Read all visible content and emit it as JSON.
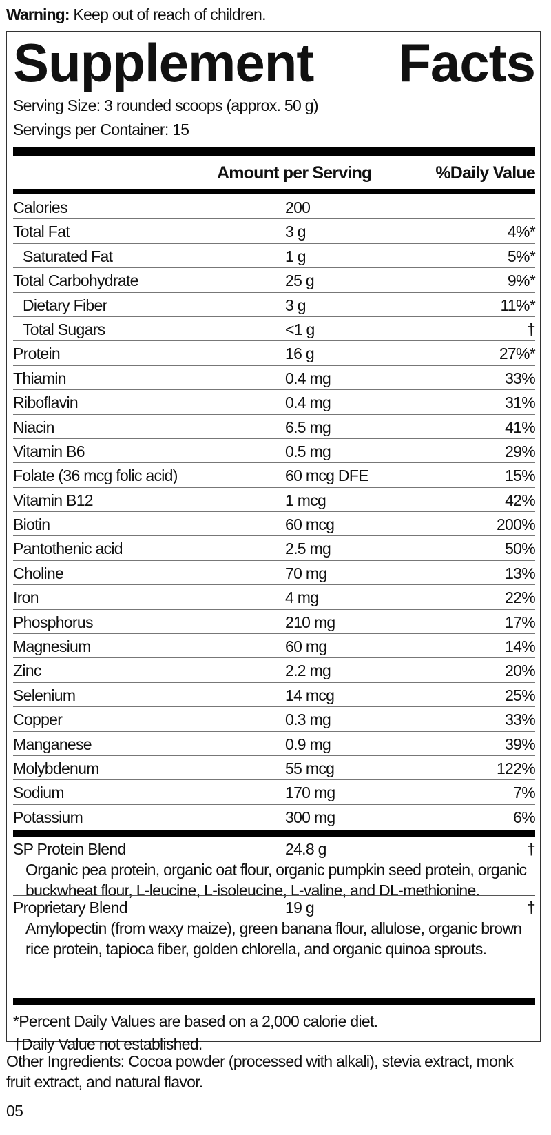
{
  "warning": {
    "label": "Warning:",
    "text": "Keep out of reach of children."
  },
  "title": {
    "word1": "Supplement",
    "word2": "Facts"
  },
  "serving_size": "Serving Size: 3 rounded scoops (approx. 50 g)",
  "servings_per_container": "Servings per Container: 15",
  "header": {
    "amount": "Amount per Serving",
    "dv": "%Daily Value"
  },
  "rows": [
    {
      "name": "Calories",
      "amount": "200",
      "dv": ""
    },
    {
      "name": "Total Fat",
      "amount": "3 g",
      "dv": "4%*"
    },
    {
      "name": "Saturated Fat",
      "amount": "1 g",
      "dv": "5%*"
    },
    {
      "name": "Total Carbohydrate",
      "amount": "25 g",
      "dv": "9%*"
    },
    {
      "name": "Dietary Fiber",
      "amount": "3 g",
      "dv": "11%*"
    },
    {
      "name": "Total Sugars",
      "amount": "<1 g",
      "dv": "†"
    },
    {
      "name": "Protein",
      "amount": "16 g",
      "dv": "27%*"
    },
    {
      "name": "Thiamin",
      "amount": "0.4 mg",
      "dv": "33%"
    },
    {
      "name": "Riboflavin",
      "amount": "0.4 mg",
      "dv": "31%"
    },
    {
      "name": "Niacin",
      "amount": "6.5 mg",
      "dv": "41%"
    },
    {
      "name": "Vitamin B6",
      "amount": "0.5 mg",
      "dv": "29%"
    },
    {
      "name": "Folate (36 mcg folic acid)",
      "amount": "60 mcg DFE",
      "dv": "15%"
    },
    {
      "name": "Vitamin B12",
      "amount": "1 mcg",
      "dv": "42%"
    },
    {
      "name": "Biotin",
      "amount": "60 mcg",
      "dv": "200%"
    },
    {
      "name": "Pantothenic acid",
      "amount": "2.5 mg",
      "dv": "50%"
    },
    {
      "name": "Choline",
      "amount": "70 mg",
      "dv": "13%"
    },
    {
      "name": "Iron",
      "amount": "4 mg",
      "dv": "22%"
    },
    {
      "name": "Phosphorus",
      "amount": "210 mg",
      "dv": "17%"
    },
    {
      "name": "Magnesium",
      "amount": "60 mg",
      "dv": "14%"
    },
    {
      "name": "Zinc",
      "amount": "2.2 mg",
      "dv": "20%"
    },
    {
      "name": "Selenium",
      "amount": "14 mcg",
      "dv": "25%"
    },
    {
      "name": "Copper",
      "amount": "0.3 mg",
      "dv": "33%"
    },
    {
      "name": "Manganese",
      "amount": "0.9 mg",
      "dv": "39%"
    },
    {
      "name": "Molybdenum",
      "amount": "55 mcg",
      "dv": "122%"
    },
    {
      "name": "Sodium",
      "amount": "170 mg",
      "dv": "7%"
    },
    {
      "name": "Potassium",
      "amount": "300 mg",
      "dv": "6%"
    }
  ],
  "blends": [
    {
      "name": "SP Protein Blend",
      "amount": "24.8 g",
      "dv": "†",
      "desc": "Organic pea protein, organic oat flour, organic pumpkin seed protein, organic buckwheat flour, L-leucine, L-isoleucine, L-valine, and DL-methionine."
    },
    {
      "name": "Proprietary Blend",
      "amount": "19 g",
      "dv": "†",
      "desc": "Amylopectin (from waxy maize), green banana flour, allulose, organic brown rice protein, tapioca fiber, golden chlorella, and organic quinoa sprouts."
    }
  ],
  "footnotes": [
    "*Percent Daily Values are based on a 2,000 calorie diet.",
    "†Daily Value not established."
  ],
  "other_ingredients": "Other Ingredients: Cocoa powder (processed with alkali), stevia extract, monk fruit extract, and natural flavor.",
  "code": "05"
}
